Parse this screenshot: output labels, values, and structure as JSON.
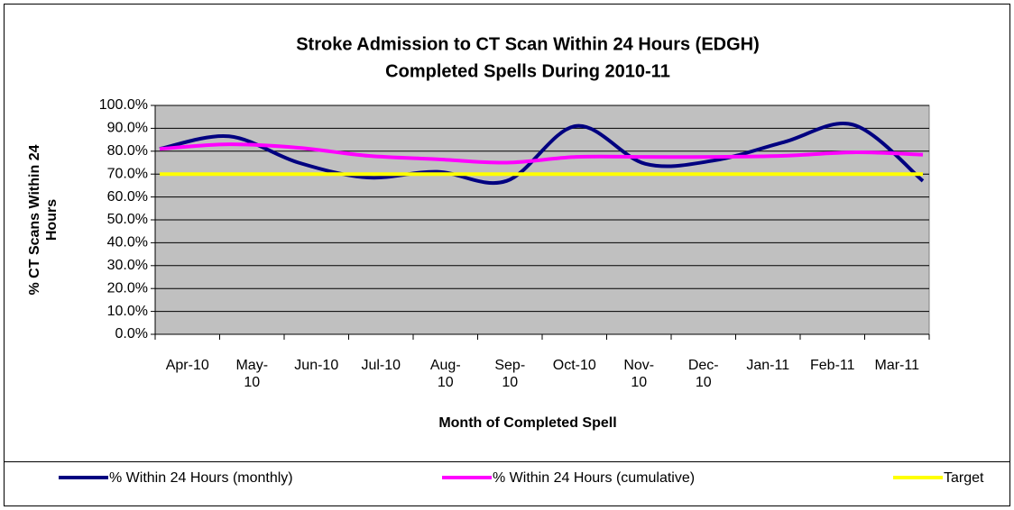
{
  "chart_data": {
    "type": "line",
    "title": "Stroke Admission to CT Scan Within 24 Hours (EDGH)",
    "subtitle": "Completed Spells During 2010-11",
    "x_label": "Month of Completed Spell",
    "y_label": "% CT Scans Within 24 Hours",
    "categories": [
      "Apr-10",
      "May-10",
      "Jun-10",
      "Jul-10",
      "Aug-10",
      "Sep-10",
      "Oct-10",
      "Nov-10",
      "Dec-10",
      "Jan-11",
      "Feb-11",
      "Mar-11"
    ],
    "series": [
      {
        "name": "% Within 24 Hours (monthly)",
        "color": "#000080",
        "smooth": true,
        "values": [
          81,
          86.5,
          75,
          68.5,
          71,
          67,
          91,
          74.5,
          76,
          84,
          91.5,
          67
        ]
      },
      {
        "name": "% Within 24 Hours (cumulative)",
        "color": "#ff00ff",
        "smooth": true,
        "values": [
          81,
          83,
          81.5,
          78,
          76.5,
          75,
          77.5,
          77.5,
          77.5,
          78,
          79.5,
          78.5
        ]
      },
      {
        "name": "Target",
        "color": "#ffff00",
        "smooth": false,
        "values": [
          70,
          70,
          70,
          70,
          70,
          70,
          70,
          70,
          70,
          70,
          70,
          70
        ]
      }
    ],
    "ylim": [
      0,
      100
    ],
    "yticks": [
      {
        "value": 0,
        "label": "0.0%"
      },
      {
        "value": 10,
        "label": "10.0%"
      },
      {
        "value": 20,
        "label": "20.0%"
      },
      {
        "value": 30,
        "label": "30.0%"
      },
      {
        "value": 40,
        "label": "40.0%"
      },
      {
        "value": 50,
        "label": "50.0%"
      },
      {
        "value": 60,
        "label": "60.0%"
      },
      {
        "value": 70,
        "label": "70.0%"
      },
      {
        "value": 80,
        "label": "80.0%"
      },
      {
        "value": 90,
        "label": "90.0%"
      },
      {
        "value": 100,
        "label": "100.0%"
      }
    ],
    "grid": true,
    "legend": "bottom",
    "plot_background": "#c0c0c0"
  }
}
